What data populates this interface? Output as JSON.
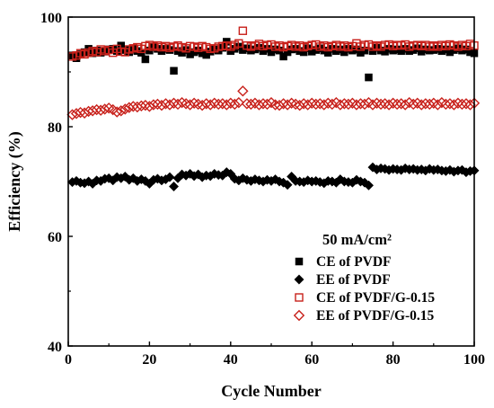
{
  "chart_data": {
    "type": "scatter",
    "xlabel": "Cycle Number",
    "ylabel": "Efficiency (%)",
    "xlim": [
      0,
      100
    ],
    "ylim": [
      40,
      100
    ],
    "xticks": [
      0,
      20,
      40,
      60,
      80,
      100
    ],
    "yticks": [
      40,
      60,
      80,
      100
    ],
    "annotation": "50 mA/cm²",
    "legend_position": "bottom-right",
    "series": [
      {
        "name": "CE of PVDF",
        "marker": "square-filled",
        "color": "#000000",
        "x": [
          1,
          2,
          3,
          4,
          5,
          6,
          7,
          8,
          9,
          10,
          11,
          12,
          13,
          14,
          15,
          16,
          17,
          18,
          19,
          20,
          21,
          22,
          23,
          24,
          25,
          26,
          27,
          28,
          29,
          30,
          31,
          32,
          33,
          34,
          35,
          36,
          37,
          38,
          39,
          40,
          41,
          42,
          43,
          44,
          45,
          46,
          47,
          48,
          49,
          50,
          51,
          52,
          53,
          54,
          55,
          56,
          57,
          58,
          59,
          60,
          61,
          62,
          63,
          64,
          65,
          66,
          67,
          68,
          69,
          70,
          71,
          72,
          73,
          74,
          75,
          76,
          77,
          78,
          79,
          80,
          81,
          82,
          83,
          84,
          85,
          86,
          87,
          88,
          89,
          90,
          91,
          92,
          93,
          94,
          95,
          96,
          97,
          98,
          99,
          100
        ],
        "y": [
          93,
          92.5,
          93.2,
          93.6,
          94.2,
          93.4,
          93.9,
          93.5,
          93.7,
          94.1,
          94.2,
          93.8,
          94.8,
          94,
          93.6,
          94.2,
          93.8,
          93.5,
          92.3,
          93.9,
          94.5,
          94.2,
          93.8,
          94.2,
          94,
          90.2,
          93.8,
          93.5,
          94,
          93.2,
          93.6,
          93.9,
          93.4,
          93.1,
          93.7,
          94.1,
          93.9,
          94.4,
          95.5,
          93.8,
          94.2,
          94.6,
          94,
          94.3,
          93.9,
          94.1,
          94.4,
          93.8,
          94.2,
          93.6,
          94.1,
          93.9,
          92.8,
          93.6,
          94.1,
          94.2,
          93.8,
          93.6,
          94.3,
          93.7,
          94,
          94.3,
          93.9,
          93.5,
          94.2,
          93.8,
          94.1,
          93.6,
          94.2,
          93.9,
          94.1,
          93.5,
          93.9,
          89,
          93.8,
          94.4,
          93.9,
          93.7,
          94.2,
          93.9,
          94.1,
          93.8,
          94.2,
          93.8,
          94,
          94.3,
          93.7,
          94.1,
          93.9,
          94,
          94.2,
          93.8,
          94.1,
          93.6,
          94,
          94.3,
          93.9,
          94.1,
          93.6,
          93.4
        ]
      },
      {
        "name": "EE of PVDF",
        "marker": "diamond-filled",
        "color": "#000000",
        "x": [
          1,
          2,
          3,
          4,
          5,
          6,
          7,
          8,
          9,
          10,
          11,
          12,
          13,
          14,
          15,
          16,
          17,
          18,
          19,
          20,
          21,
          22,
          23,
          24,
          25,
          26,
          27,
          28,
          29,
          30,
          31,
          32,
          33,
          34,
          35,
          36,
          37,
          38,
          39,
          40,
          41,
          42,
          43,
          44,
          45,
          46,
          47,
          48,
          49,
          50,
          51,
          52,
          53,
          54,
          55,
          56,
          57,
          58,
          59,
          60,
          61,
          62,
          63,
          64,
          65,
          66,
          67,
          68,
          69,
          70,
          71,
          72,
          73,
          74,
          75,
          76,
          77,
          78,
          79,
          80,
          81,
          82,
          83,
          84,
          85,
          86,
          87,
          88,
          89,
          90,
          91,
          92,
          93,
          94,
          95,
          96,
          97,
          98,
          99,
          100
        ],
        "y": [
          69.9,
          70.1,
          69.8,
          69.7,
          70,
          69.6,
          70.2,
          70.1,
          70.5,
          70.6,
          70.2,
          70.8,
          70.6,
          70.9,
          70.3,
          70.6,
          70.1,
          70.4,
          70.1,
          69.6,
          70.3,
          70.5,
          70.2,
          70.4,
          70.8,
          69.1,
          70.6,
          71.3,
          71.1,
          71.4,
          71,
          71.3,
          70.8,
          71.1,
          71,
          71.4,
          71.2,
          71.1,
          71.7,
          71.4,
          70.5,
          70.2,
          70.6,
          70.3,
          70.1,
          70.4,
          70.2,
          70,
          70.3,
          70.1,
          70.4,
          70,
          69.8,
          69.4,
          70.9,
          70.1,
          70,
          69.9,
          70.2,
          70,
          70.1,
          69.9,
          69.7,
          70.1,
          70,
          69.8,
          70.4,
          70,
          69.9,
          69.8,
          70.3,
          70,
          69.8,
          69.3,
          72.6,
          72.2,
          72.4,
          72.3,
          72.1,
          72.3,
          72.2,
          72.1,
          72.4,
          72.2,
          72.3,
          72.1,
          72.2,
          72,
          72.3,
          72.1,
          72.2,
          72,
          71.9,
          72.1,
          71.8,
          72,
          72.1,
          71.7,
          71.9,
          72
        ]
      },
      {
        "name": "CE of PVDF/G-0.15",
        "marker": "square-open",
        "color": "#c8211b",
        "x": [
          1,
          2,
          3,
          4,
          5,
          6,
          7,
          8,
          9,
          10,
          11,
          12,
          13,
          14,
          15,
          16,
          17,
          18,
          19,
          20,
          21,
          22,
          23,
          24,
          25,
          26,
          27,
          28,
          29,
          30,
          31,
          32,
          33,
          34,
          35,
          36,
          37,
          38,
          39,
          40,
          41,
          42,
          43,
          44,
          45,
          46,
          47,
          48,
          49,
          50,
          51,
          52,
          53,
          54,
          55,
          56,
          57,
          58,
          59,
          60,
          61,
          62,
          63,
          64,
          65,
          66,
          67,
          68,
          69,
          70,
          71,
          72,
          73,
          74,
          75,
          76,
          77,
          78,
          79,
          80,
          81,
          82,
          83,
          84,
          85,
          86,
          87,
          88,
          89,
          90,
          91,
          92,
          93,
          94,
          95,
          96,
          97,
          98,
          99,
          100
        ],
        "y": [
          92.8,
          93,
          93.4,
          93.2,
          93.5,
          93.8,
          93.6,
          94.1,
          93.8,
          94,
          93.5,
          94.2,
          93.7,
          93.6,
          94.1,
          94.3,
          94.5,
          94.2,
          94.7,
          94.9,
          94.6,
          94.8,
          94.5,
          94.7,
          94.4,
          94.6,
          94.8,
          94.5,
          94.3,
          94.7,
          94.6,
          94.4,
          94.7,
          94.5,
          94.2,
          94.3,
          94.6,
          94.7,
          94.8,
          94.6,
          94.9,
          95.2,
          97.5,
          94.8,
          94.6,
          94.8,
          95.1,
          94.7,
          94.9,
          95,
          94.6,
          94.8,
          94.5,
          94.7,
          94.9,
          94.6,
          94.8,
          94.5,
          94.7,
          94.9,
          95,
          94.6,
          94.8,
          94.5,
          94.7,
          94.9,
          94.6,
          94.8,
          94.5,
          94.7,
          95.2,
          94.6,
          94.9,
          95,
          94.6,
          94.8,
          94.6,
          94.9,
          95,
          94.7,
          94.9,
          94.8,
          95,
          94.6,
          94.8,
          94.9,
          94.7,
          94.9,
          94.6,
          94.8,
          94.6,
          94.9,
          94.7,
          95,
          94.8,
          94.6,
          94.9,
          94.7,
          95.1,
          94.8
        ]
      },
      {
        "name": "EE of PVDF/G-0.15",
        "marker": "diamond-open",
        "color": "#c8211b",
        "x": [
          1,
          2,
          3,
          4,
          5,
          6,
          7,
          8,
          9,
          10,
          11,
          12,
          13,
          14,
          15,
          16,
          17,
          18,
          19,
          20,
          21,
          22,
          23,
          24,
          25,
          26,
          27,
          28,
          29,
          30,
          31,
          32,
          33,
          34,
          35,
          36,
          37,
          38,
          39,
          40,
          41,
          42,
          43,
          44,
          45,
          46,
          47,
          48,
          49,
          50,
          51,
          52,
          53,
          54,
          55,
          56,
          57,
          58,
          59,
          60,
          61,
          62,
          63,
          64,
          65,
          66,
          67,
          68,
          69,
          70,
          71,
          72,
          73,
          74,
          75,
          76,
          77,
          78,
          79,
          80,
          81,
          82,
          83,
          84,
          85,
          86,
          87,
          88,
          89,
          90,
          91,
          92,
          93,
          94,
          95,
          96,
          97,
          98,
          99,
          100
        ],
        "y": [
          82.2,
          82.4,
          82.6,
          82.5,
          82.8,
          82.9,
          83.1,
          83,
          83.2,
          83.4,
          83.1,
          82.7,
          82.9,
          83.2,
          83.5,
          83.7,
          83.6,
          83.8,
          83.9,
          83.7,
          84,
          84.1,
          83.9,
          84.2,
          84,
          84.3,
          84.1,
          84.4,
          84.2,
          84,
          84.3,
          84.1,
          83.9,
          84.2,
          84,
          84.3,
          84.1,
          84.2,
          84,
          84.3,
          84.1,
          84.4,
          86.5,
          84.2,
          84.1,
          84.3,
          84,
          84.2,
          84.1,
          84.4,
          84,
          83.9,
          84.2,
          84,
          84.3,
          84.1,
          83.9,
          84.2,
          84,
          84.3,
          84.1,
          84.2,
          84,
          84.3,
          84.1,
          84.4,
          84,
          84.2,
          84.1,
          84.3,
          84,
          84.2,
          84.1,
          84.4,
          84,
          84.3,
          84.1,
          84.2,
          84,
          84.3,
          84.1,
          84.2,
          84,
          84.4,
          84.1,
          84.3,
          84,
          84.2,
          84.1,
          84.3,
          84,
          84.4,
          84.1,
          84.2,
          84,
          84.3,
          84.1,
          84.2,
          84,
          84.3
        ]
      }
    ]
  }
}
